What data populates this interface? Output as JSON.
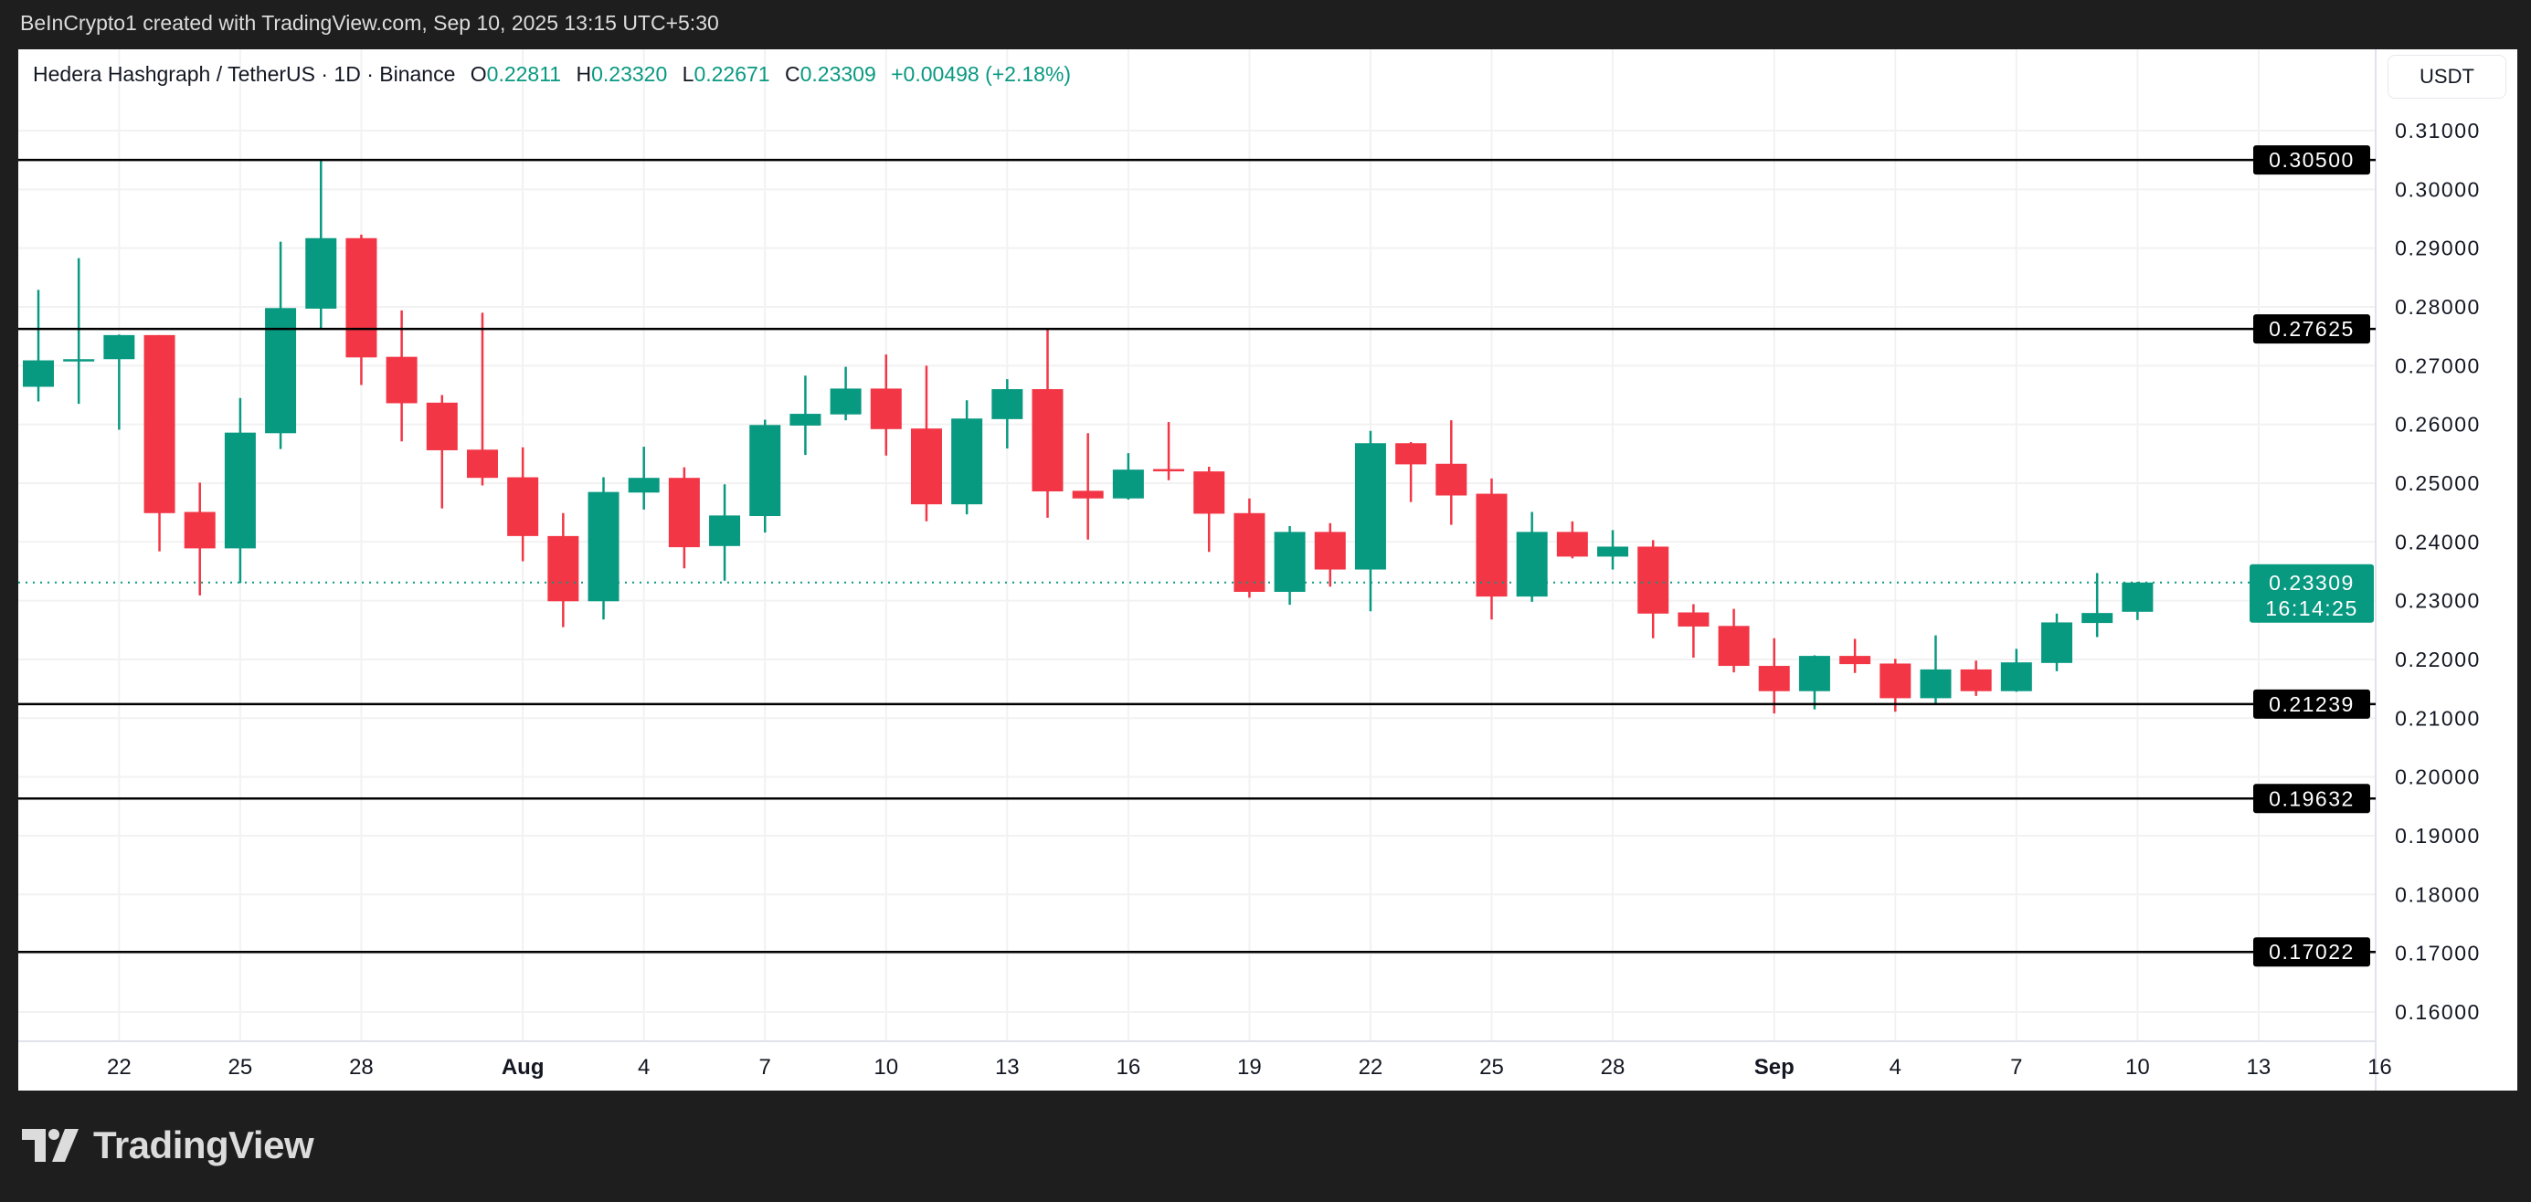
{
  "header": {
    "attribution": "BeInCrypto1 created with TradingView.com, Sep 10, 2025 13:15 UTC+5:30"
  },
  "legend": {
    "symbol": "Hedera Hashgraph / TetherUS · 1D · Binance",
    "open_label": "O",
    "open": "0.22811",
    "high_label": "H",
    "high": "0.23320",
    "low_label": "L",
    "low": "0.22671",
    "close_label": "C",
    "close": "0.23309",
    "change": "+0.00498 (+2.18%)"
  },
  "price_axis": {
    "currency": "USDT"
  },
  "footer": {
    "logo_text": "TradingView"
  },
  "colors": {
    "up": "#089981",
    "down": "#f23645",
    "level_line": "#000000",
    "grid": "#f2f2f2"
  },
  "chart_data": {
    "type": "candlestick",
    "title": "",
    "ylim": [
      0.155,
      0.3135
    ],
    "grid": true,
    "y_ticks": [
      "0.31000",
      "0.30000",
      "0.29000",
      "0.28000",
      "0.27000",
      "0.26000",
      "0.25000",
      "0.24000",
      "0.23000",
      "0.22000",
      "0.21000",
      "0.20000",
      "0.19000",
      "0.18000",
      "0.17000",
      "0.16000"
    ],
    "x_ticks": [
      {
        "label": "22",
        "date": "2025-07-22"
      },
      {
        "label": "25",
        "date": "2025-07-25"
      },
      {
        "label": "28",
        "date": "2025-07-28"
      },
      {
        "label": "Aug",
        "date": "2025-08-01",
        "bold": true
      },
      {
        "label": "4",
        "date": "2025-08-04"
      },
      {
        "label": "7",
        "date": "2025-08-07"
      },
      {
        "label": "10",
        "date": "2025-08-10"
      },
      {
        "label": "13",
        "date": "2025-08-13"
      },
      {
        "label": "16",
        "date": "2025-08-16"
      },
      {
        "label": "19",
        "date": "2025-08-19"
      },
      {
        "label": "22",
        "date": "2025-08-22"
      },
      {
        "label": "25",
        "date": "2025-08-25"
      },
      {
        "label": "28",
        "date": "2025-08-28"
      },
      {
        "label": "Sep",
        "date": "2025-09-01",
        "bold": true
      },
      {
        "label": "4",
        "date": "2025-09-04"
      },
      {
        "label": "7",
        "date": "2025-09-07"
      },
      {
        "label": "10",
        "date": "2025-09-10"
      },
      {
        "label": "13",
        "date": "2025-09-13"
      },
      {
        "label": "16",
        "date": "2025-09-16"
      }
    ],
    "horizontal_levels": [
      "0.30500",
      "0.27625",
      "0.21239",
      "0.19632",
      "0.17022"
    ],
    "current_price": {
      "value": "0.23309",
      "countdown": "16:14:25"
    },
    "candles": [
      {
        "date": "2025-07-20",
        "o": 0.2664,
        "h": 0.2829,
        "l": 0.2639,
        "c": 0.2709
      },
      {
        "date": "2025-07-21",
        "o": 0.2709,
        "h": 0.2883,
        "l": 0.2635,
        "c": 0.2711
      },
      {
        "date": "2025-07-22",
        "o": 0.2711,
        "h": 0.2753,
        "l": 0.2591,
        "c": 0.2752
      },
      {
        "date": "2025-07-23",
        "o": 0.2752,
        "h": 0.2752,
        "l": 0.2384,
        "c": 0.2449
      },
      {
        "date": "2025-07-24",
        "o": 0.2451,
        "h": 0.2501,
        "l": 0.2309,
        "c": 0.2389
      },
      {
        "date": "2025-07-25",
        "o": 0.2389,
        "h": 0.2645,
        "l": 0.233,
        "c": 0.2586
      },
      {
        "date": "2025-07-26",
        "o": 0.2585,
        "h": 0.2911,
        "l": 0.2558,
        "c": 0.2798
      },
      {
        "date": "2025-07-27",
        "o": 0.2797,
        "h": 0.3049,
        "l": 0.2763,
        "c": 0.2917
      },
      {
        "date": "2025-07-28",
        "o": 0.2917,
        "h": 0.2923,
        "l": 0.2667,
        "c": 0.2714
      },
      {
        "date": "2025-07-29",
        "o": 0.2715,
        "h": 0.2794,
        "l": 0.2571,
        "c": 0.2636
      },
      {
        "date": "2025-07-30",
        "o": 0.2637,
        "h": 0.265,
        "l": 0.2457,
        "c": 0.2556
      },
      {
        "date": "2025-07-31",
        "o": 0.2557,
        "h": 0.279,
        "l": 0.2496,
        "c": 0.2509
      },
      {
        "date": "2025-08-01",
        "o": 0.251,
        "h": 0.2561,
        "l": 0.2367,
        "c": 0.241
      },
      {
        "date": "2025-08-02",
        "o": 0.241,
        "h": 0.2449,
        "l": 0.2255,
        "c": 0.2299
      },
      {
        "date": "2025-08-03",
        "o": 0.2299,
        "h": 0.251,
        "l": 0.2268,
        "c": 0.2485
      },
      {
        "date": "2025-08-04",
        "o": 0.2484,
        "h": 0.2562,
        "l": 0.2455,
        "c": 0.2509
      },
      {
        "date": "2025-08-05",
        "o": 0.2509,
        "h": 0.2527,
        "l": 0.2355,
        "c": 0.2391
      },
      {
        "date": "2025-08-06",
        "o": 0.2393,
        "h": 0.2498,
        "l": 0.2334,
        "c": 0.2445
      },
      {
        "date": "2025-08-07",
        "o": 0.2444,
        "h": 0.2608,
        "l": 0.2416,
        "c": 0.2599
      },
      {
        "date": "2025-08-08",
        "o": 0.2598,
        "h": 0.2683,
        "l": 0.2548,
        "c": 0.2618
      },
      {
        "date": "2025-08-09",
        "o": 0.2617,
        "h": 0.2698,
        "l": 0.2607,
        "c": 0.2661
      },
      {
        "date": "2025-08-10",
        "o": 0.2661,
        "h": 0.2719,
        "l": 0.2547,
        "c": 0.2592
      },
      {
        "date": "2025-08-11",
        "o": 0.2593,
        "h": 0.27,
        "l": 0.2435,
        "c": 0.2464
      },
      {
        "date": "2025-08-12",
        "o": 0.2464,
        "h": 0.2641,
        "l": 0.2447,
        "c": 0.261
      },
      {
        "date": "2025-08-13",
        "o": 0.2609,
        "h": 0.2677,
        "l": 0.2559,
        "c": 0.266
      },
      {
        "date": "2025-08-14",
        "o": 0.266,
        "h": 0.2762,
        "l": 0.2441,
        "c": 0.2486
      },
      {
        "date": "2025-08-15",
        "o": 0.2487,
        "h": 0.2585,
        "l": 0.2404,
        "c": 0.2474
      },
      {
        "date": "2025-08-16",
        "o": 0.2474,
        "h": 0.2551,
        "l": 0.2472,
        "c": 0.2523
      },
      {
        "date": "2025-08-17",
        "o": 0.2524,
        "h": 0.2604,
        "l": 0.2505,
        "c": 0.2522
      },
      {
        "date": "2025-08-18",
        "o": 0.252,
        "h": 0.2528,
        "l": 0.2383,
        "c": 0.2448
      },
      {
        "date": "2025-08-19",
        "o": 0.2449,
        "h": 0.2474,
        "l": 0.2305,
        "c": 0.2315
      },
      {
        "date": "2025-08-20",
        "o": 0.2315,
        "h": 0.2427,
        "l": 0.2293,
        "c": 0.2417
      },
      {
        "date": "2025-08-21",
        "o": 0.2417,
        "h": 0.2432,
        "l": 0.2324,
        "c": 0.2353
      },
      {
        "date": "2025-08-22",
        "o": 0.2353,
        "h": 0.2589,
        "l": 0.2282,
        "c": 0.2568
      },
      {
        "date": "2025-08-23",
        "o": 0.2568,
        "h": 0.257,
        "l": 0.2468,
        "c": 0.2532
      },
      {
        "date": "2025-08-24",
        "o": 0.2533,
        "h": 0.2607,
        "l": 0.2429,
        "c": 0.2479
      },
      {
        "date": "2025-08-25",
        "o": 0.2482,
        "h": 0.2508,
        "l": 0.2268,
        "c": 0.2307
      },
      {
        "date": "2025-08-26",
        "o": 0.2307,
        "h": 0.2451,
        "l": 0.2298,
        "c": 0.2417
      },
      {
        "date": "2025-08-27",
        "o": 0.2417,
        "h": 0.2435,
        "l": 0.2372,
        "c": 0.2375
      },
      {
        "date": "2025-08-28",
        "o": 0.2375,
        "h": 0.242,
        "l": 0.2353,
        "c": 0.2392
      },
      {
        "date": "2025-08-29",
        "o": 0.2392,
        "h": 0.2403,
        "l": 0.2236,
        "c": 0.2278
      },
      {
        "date": "2025-08-30",
        "o": 0.228,
        "h": 0.2294,
        "l": 0.2203,
        "c": 0.2256
      },
      {
        "date": "2025-08-31",
        "o": 0.2257,
        "h": 0.2286,
        "l": 0.2178,
        "c": 0.2189
      },
      {
        "date": "2025-09-01",
        "o": 0.2189,
        "h": 0.2236,
        "l": 0.2108,
        "c": 0.2146
      },
      {
        "date": "2025-09-02",
        "o": 0.2146,
        "h": 0.2207,
        "l": 0.2115,
        "c": 0.2206
      },
      {
        "date": "2025-09-03",
        "o": 0.2206,
        "h": 0.2235,
        "l": 0.2177,
        "c": 0.2192
      },
      {
        "date": "2025-09-04",
        "o": 0.2193,
        "h": 0.2201,
        "l": 0.2111,
        "c": 0.2134
      },
      {
        "date": "2025-09-05",
        "o": 0.2134,
        "h": 0.2241,
        "l": 0.2125,
        "c": 0.2183
      },
      {
        "date": "2025-09-06",
        "o": 0.2183,
        "h": 0.2198,
        "l": 0.2138,
        "c": 0.2146
      },
      {
        "date": "2025-09-07",
        "o": 0.2146,
        "h": 0.2218,
        "l": 0.2145,
        "c": 0.2195
      },
      {
        "date": "2025-09-08",
        "o": 0.2194,
        "h": 0.2278,
        "l": 0.218,
        "c": 0.2263
      },
      {
        "date": "2025-09-09",
        "o": 0.2262,
        "h": 0.2347,
        "l": 0.2238,
        "c": 0.2279
      },
      {
        "date": "2025-09-10",
        "o": 0.22811,
        "h": 0.2332,
        "l": 0.22671,
        "c": 0.23309
      }
    ]
  }
}
